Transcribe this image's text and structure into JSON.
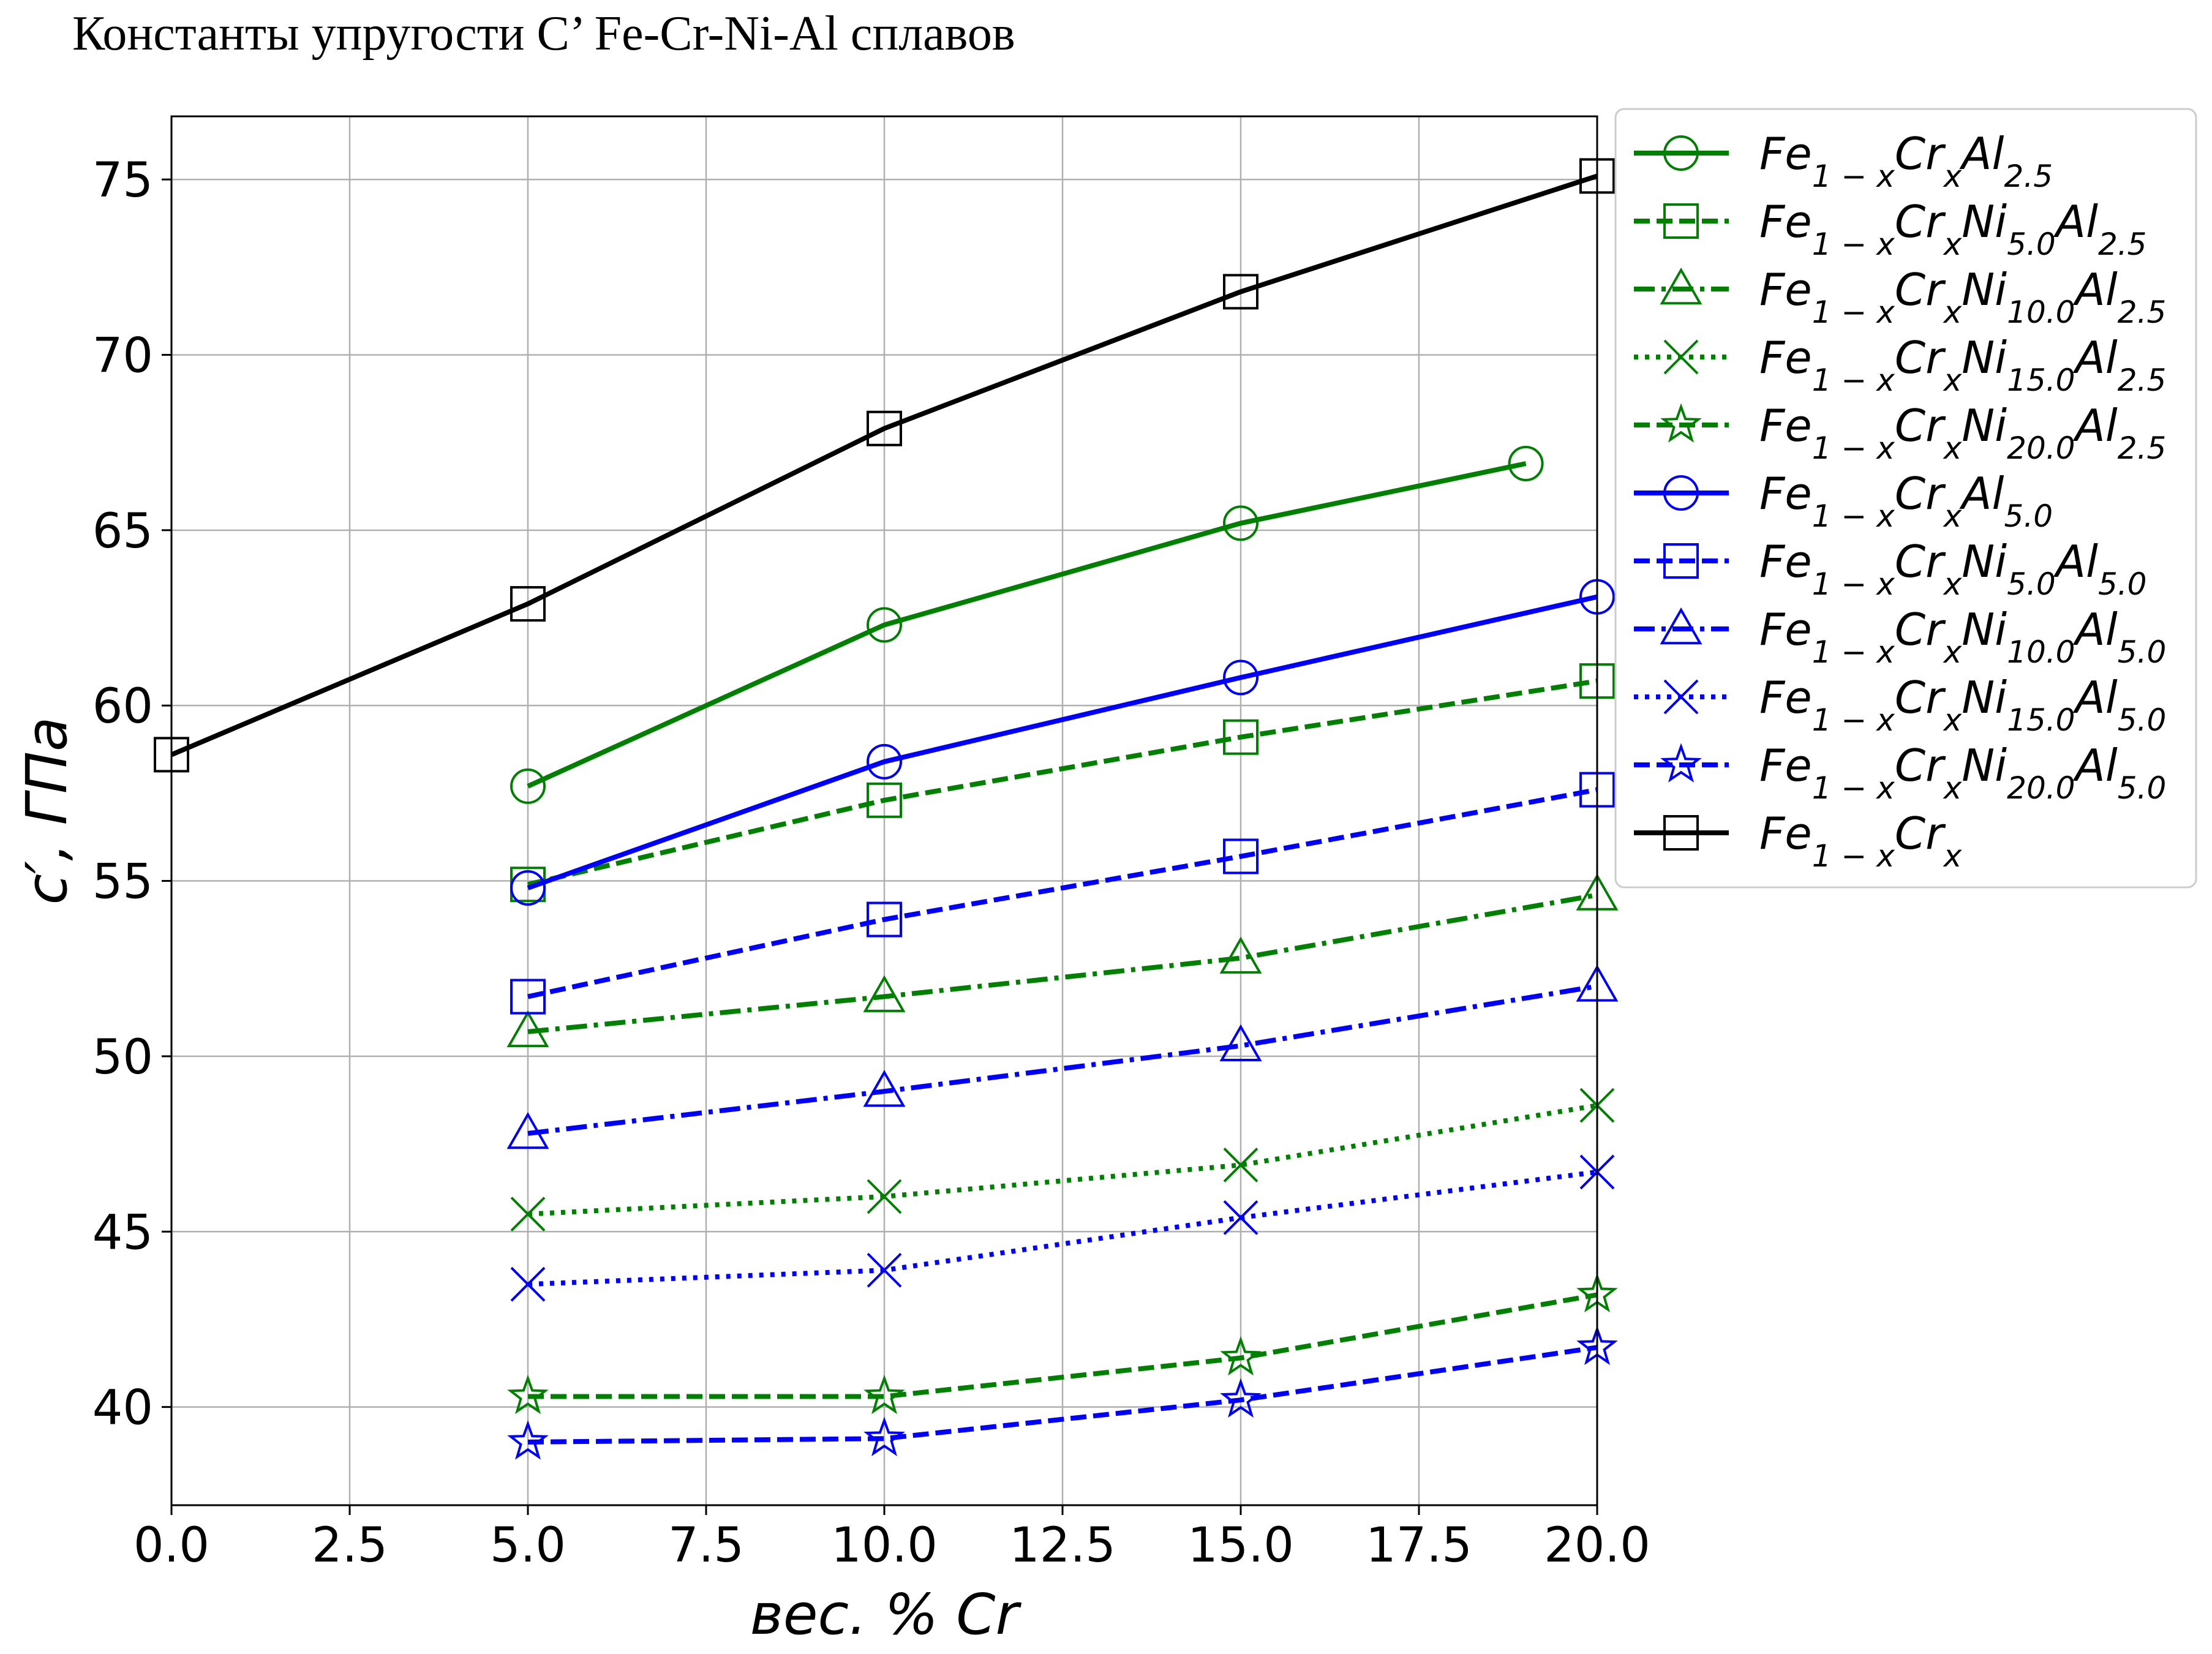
{
  "page": {
    "title": "Константы упругости С’ Fe-Cr-Ni-Al сплавов"
  },
  "chart_data": {
    "type": "line",
    "xlabel": "вес. % Cr",
    "ylabel": "c′, ГПа",
    "xlim": [
      0,
      20
    ],
    "ylim": [
      37.2,
      76.8
    ],
    "xticks": [
      0.0,
      2.5,
      5.0,
      7.5,
      10.0,
      12.5,
      15.0,
      17.5,
      20.0
    ],
    "xtick_labels": [
      "0.0",
      "2.5",
      "5.0",
      "7.5",
      "10.0",
      "12.5",
      "15.0",
      "17.5",
      "20.0"
    ],
    "yticks": [
      40,
      45,
      50,
      55,
      60,
      65,
      70,
      75
    ],
    "ytick_labels": [
      "40",
      "45",
      "50",
      "55",
      "60",
      "65",
      "70",
      "75"
    ],
    "grid": true,
    "legend_position": "outside-right-top",
    "series": [
      {
        "name": "Fe1-xCrxAl2.5",
        "label": {
          "base": "Fe",
          "sub1": "1 − x",
          "base2": "Cr",
          "sub2": "x",
          "ni": "",
          "al": "Al",
          "al_sub": "2.5"
        },
        "color": "#008000",
        "dash": "solid",
        "marker": "circle",
        "x": [
          5,
          10,
          15,
          19
        ],
        "y": [
          57.7,
          62.3,
          65.2,
          66.9
        ]
      },
      {
        "name": "Fe1-xCrxNi5.0Al2.5",
        "label": {
          "base": "Fe",
          "sub1": "1 − x",
          "base2": "Cr",
          "sub2": "x",
          "ni": "Ni",
          "ni_sub": "5.0",
          "al": "Al",
          "al_sub": "2.5"
        },
        "color": "#008000",
        "dash": "dashed",
        "marker": "square",
        "x": [
          5,
          10,
          15,
          20
        ],
        "y": [
          54.9,
          57.3,
          59.1,
          60.7
        ]
      },
      {
        "name": "Fe1-xCrxNi10.0Al2.5",
        "label": {
          "base": "Fe",
          "sub1": "1 − x",
          "base2": "Cr",
          "sub2": "x",
          "ni": "Ni",
          "ni_sub": "10.0",
          "al": "Al",
          "al_sub": "2.5"
        },
        "color": "#008000",
        "dash": "dashdot",
        "marker": "triangle",
        "x": [
          5,
          10,
          15,
          20
        ],
        "y": [
          50.7,
          51.7,
          52.8,
          54.6
        ]
      },
      {
        "name": "Fe1-xCrxNi15.0Al2.5",
        "label": {
          "base": "Fe",
          "sub1": "1 − x",
          "base2": "Cr",
          "sub2": "x",
          "ni": "Ni",
          "ni_sub": "15.0",
          "al": "Al",
          "al_sub": "2.5"
        },
        "color": "#008000",
        "dash": "dotted",
        "marker": "x",
        "x": [
          5,
          10,
          15,
          20
        ],
        "y": [
          45.5,
          46.0,
          46.9,
          48.6
        ]
      },
      {
        "name": "Fe1-xCrxNi20.0Al2.5",
        "label": {
          "base": "Fe",
          "sub1": "1 − x",
          "base2": "Cr",
          "sub2": "x",
          "ni": "Ni",
          "ni_sub": "20.0",
          "al": "Al",
          "al_sub": "2.5"
        },
        "color": "#008000",
        "dash": "dashed",
        "marker": "star",
        "x": [
          5,
          10,
          15,
          20
        ],
        "y": [
          40.3,
          40.3,
          41.4,
          43.2
        ]
      },
      {
        "name": "Fe1-xCrxAl5.0",
        "label": {
          "base": "Fe",
          "sub1": "1 − x",
          "base2": "Cr",
          "sub2": "x",
          "ni": "",
          "al": "Al",
          "al_sub": "5.0"
        },
        "color": "#0000ff",
        "dash": "solid",
        "marker": "circle",
        "x": [
          5,
          10,
          15,
          20
        ],
        "y": [
          54.8,
          58.4,
          60.8,
          63.1
        ]
      },
      {
        "name": "Fe1-xCrxNi5.0Al5.0",
        "label": {
          "base": "Fe",
          "sub1": "1 − x",
          "base2": "Cr",
          "sub2": "x",
          "ni": "Ni",
          "ni_sub": "5.0",
          "al": "Al",
          "al_sub": "5.0"
        },
        "color": "#0000ff",
        "dash": "dashed",
        "marker": "square",
        "x": [
          5,
          10,
          15,
          20
        ],
        "y": [
          51.7,
          53.9,
          55.7,
          57.6
        ]
      },
      {
        "name": "Fe1-xCrxNi10.0Al5.0",
        "label": {
          "base": "Fe",
          "sub1": "1 − x",
          "base2": "Cr",
          "sub2": "x",
          "ni": "Ni",
          "ni_sub": "10.0",
          "al": "Al",
          "al_sub": "5.0"
        },
        "color": "#0000ff",
        "dash": "dashdot",
        "marker": "triangle",
        "x": [
          5,
          10,
          15,
          20
        ],
        "y": [
          47.8,
          49.0,
          50.3,
          52.0
        ]
      },
      {
        "name": "Fe1-xCrxNi15.0Al5.0",
        "label": {
          "base": "Fe",
          "sub1": "1 − x",
          "base2": "Cr",
          "sub2": "x",
          "ni": "Ni",
          "ni_sub": "15.0",
          "al": "Al",
          "al_sub": "5.0"
        },
        "color": "#0000ff",
        "dash": "dotted",
        "marker": "x",
        "x": [
          5,
          10,
          15,
          20
        ],
        "y": [
          43.5,
          43.9,
          45.4,
          46.7
        ]
      },
      {
        "name": "Fe1-xCrxNi20.0Al5.0",
        "label": {
          "base": "Fe",
          "sub1": "1 − x",
          "base2": "Cr",
          "sub2": "x",
          "ni": "Ni",
          "ni_sub": "20.0",
          "al": "Al",
          "al_sub": "5.0"
        },
        "color": "#0000ff",
        "dash": "dashed",
        "marker": "star",
        "x": [
          5,
          10,
          15,
          20
        ],
        "y": [
          39.0,
          39.1,
          40.2,
          41.7
        ]
      },
      {
        "name": "Fe1-xCrx",
        "label": {
          "base": "Fe",
          "sub1": "1 − x",
          "base2": "Cr",
          "sub2": "x",
          "ni": "",
          "al": "",
          "al_sub": ""
        },
        "color": "#000000",
        "dash": "solid",
        "marker": "square",
        "x": [
          0,
          5,
          10,
          15,
          20
        ],
        "y": [
          58.6,
          62.9,
          67.9,
          71.8,
          75.1
        ]
      }
    ]
  }
}
